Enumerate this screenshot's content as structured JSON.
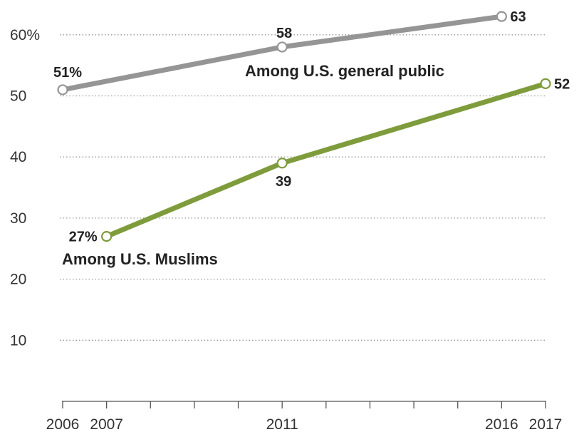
{
  "chart_data": {
    "type": "line",
    "title": "",
    "xlabel": "",
    "ylabel": "",
    "ylim": [
      0,
      63
    ],
    "y_ticks": [
      {
        "value": 10,
        "label": "10"
      },
      {
        "value": 20,
        "label": "20"
      },
      {
        "value": 30,
        "label": "30"
      },
      {
        "value": 40,
        "label": "40"
      },
      {
        "value": 50,
        "label": "50"
      },
      {
        "value": 60,
        "label": "60%"
      }
    ],
    "x_range": [
      2006,
      2017
    ],
    "x_tick_marks": [
      2006,
      2007,
      2008,
      2009,
      2010,
      2011,
      2012,
      2013,
      2014,
      2015,
      2016,
      2017
    ],
    "x_tick_labels": [
      {
        "value": 2006,
        "label": "2006"
      },
      {
        "value": 2007,
        "label": "2007"
      },
      {
        "value": 2011,
        "label": "2011"
      },
      {
        "value": 2016,
        "label": "2016"
      },
      {
        "value": 2017,
        "label": "2017"
      }
    ],
    "grid": true,
    "series": [
      {
        "name": "Among U.S. general public",
        "color": "#959595",
        "x": [
          2006,
          2011,
          2016
        ],
        "y": [
          51,
          58,
          63
        ],
        "data_labels": [
          "51%",
          "58",
          "63"
        ]
      },
      {
        "name": "Among U.S. Muslims",
        "color": "#7f9c3c",
        "x": [
          2007,
          2011,
          2017
        ],
        "y": [
          27,
          39,
          52
        ],
        "data_labels": [
          "27%",
          "39",
          "52"
        ]
      }
    ]
  }
}
